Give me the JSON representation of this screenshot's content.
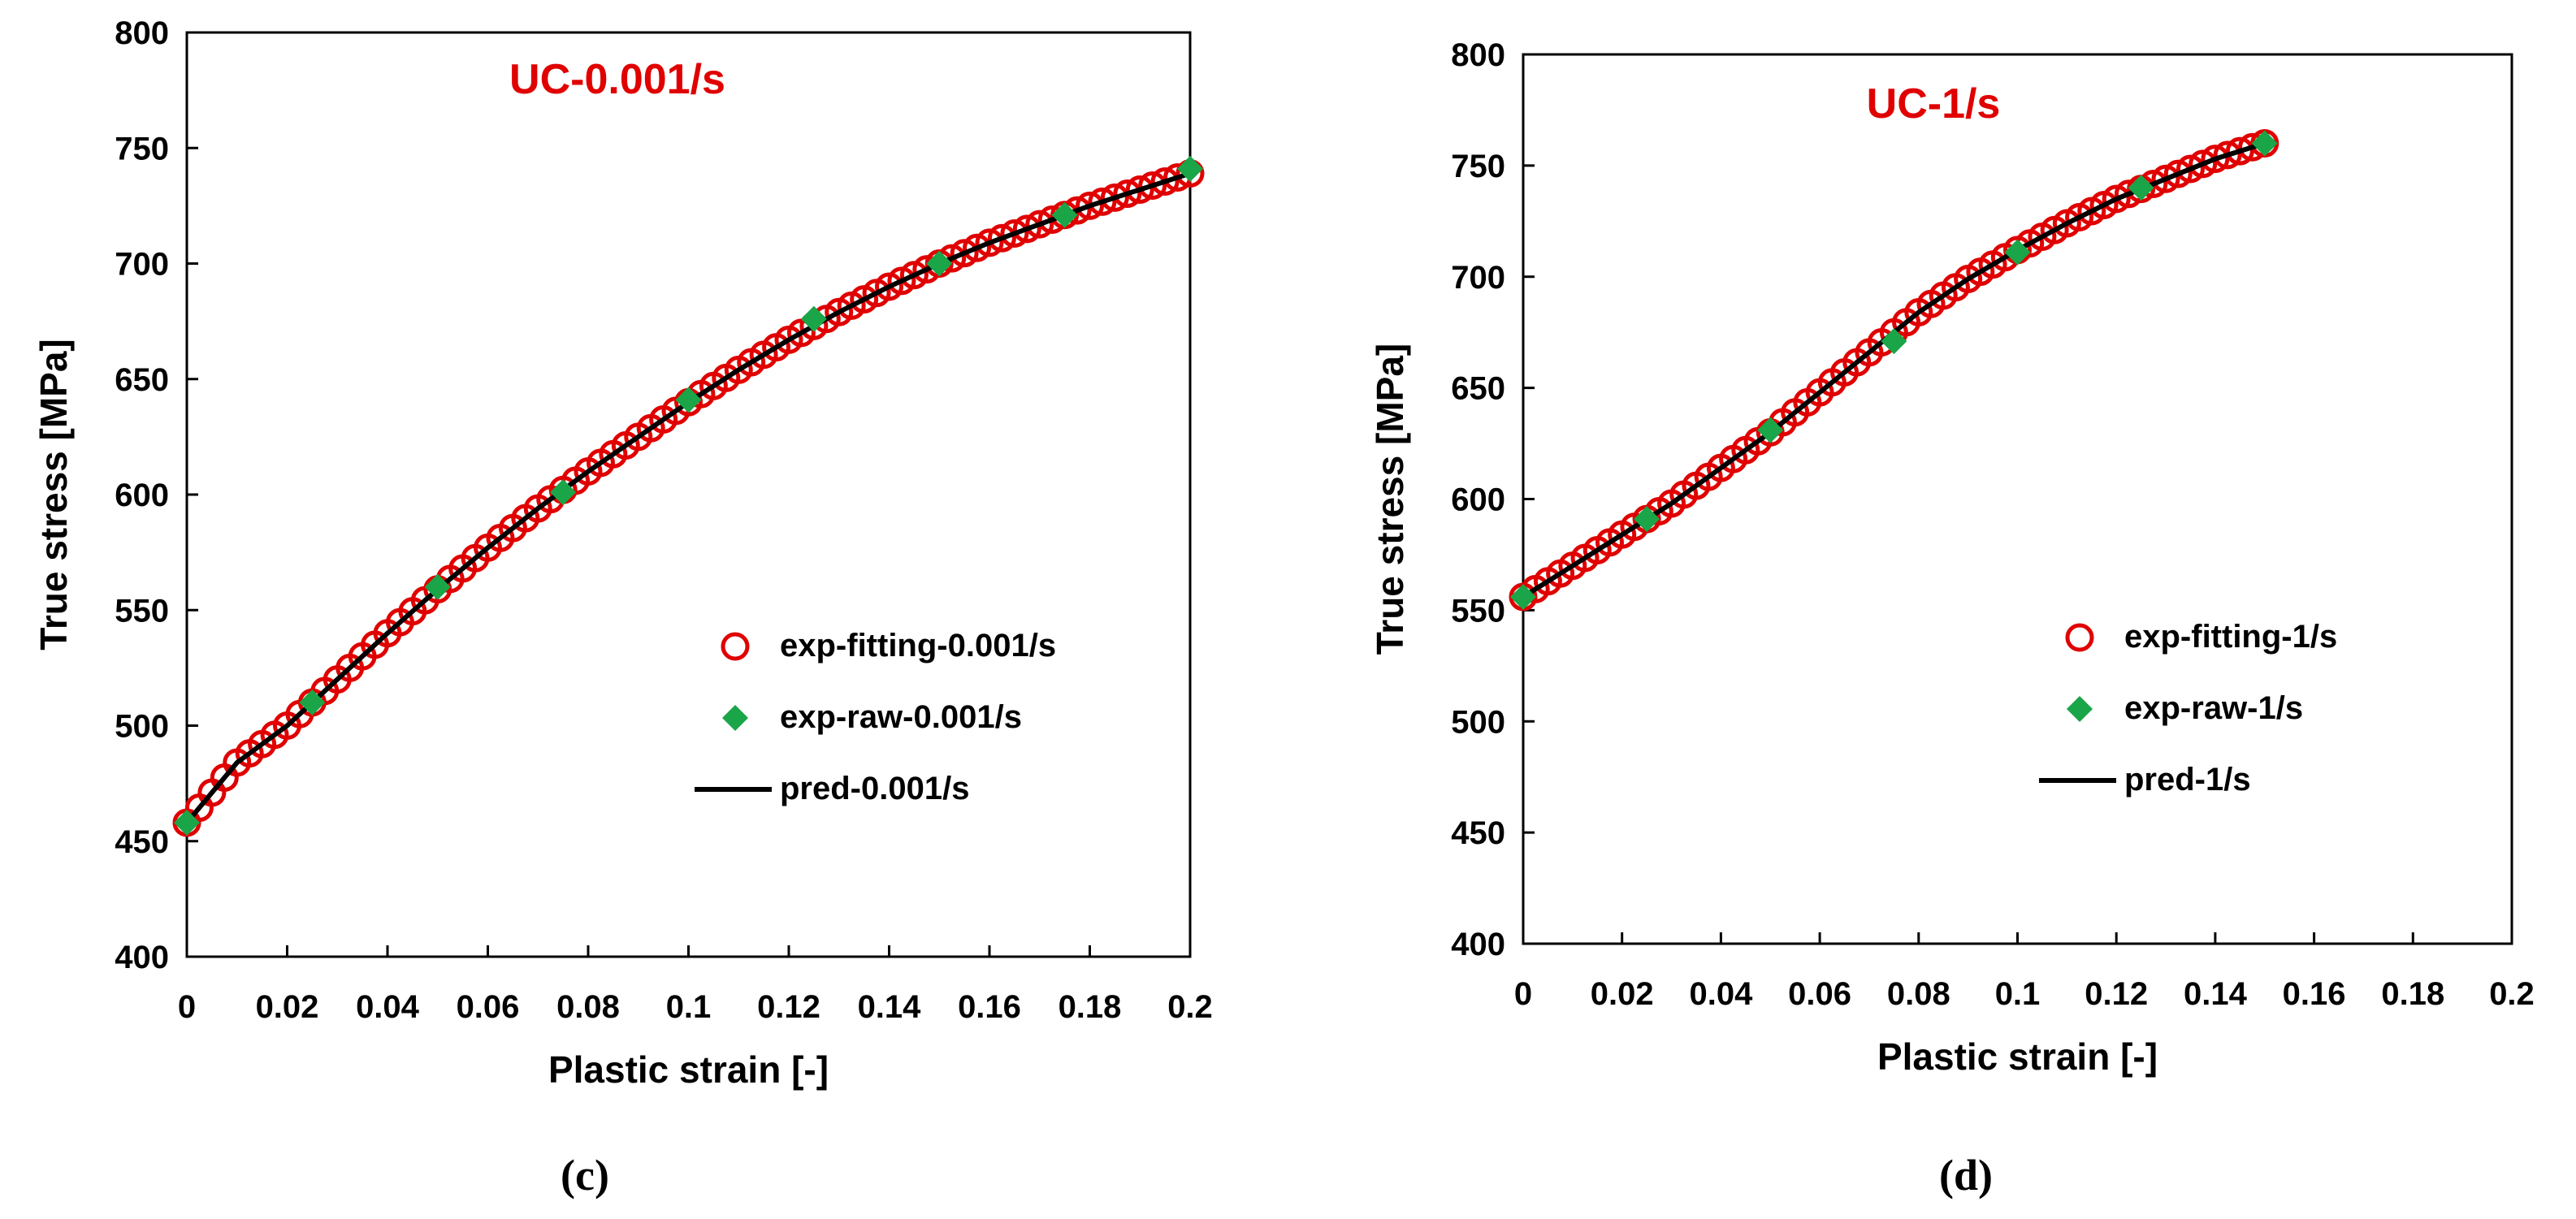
{
  "colors": {
    "fitting": "#e00000",
    "raw": "#1aa548",
    "pred": "#000000",
    "title": "#e00000"
  },
  "chart_data": [
    {
      "type": "line",
      "panel_label": "(c)",
      "title": "UC-0.001/s",
      "xlabel": "Plastic strain [-]",
      "ylabel": "True stress [MPa]",
      "xlim": [
        0,
        0.2
      ],
      "ylim": [
        400,
        800
      ],
      "xticks": [
        0,
        0.02,
        0.04,
        0.06,
        0.08,
        0.1,
        0.12,
        0.14,
        0.16,
        0.18,
        0.2
      ],
      "xtick_labels": [
        "0",
        "0.02",
        "0.04",
        "0.06",
        "0.08",
        "0.1",
        "0.12",
        "0.14",
        "0.16",
        "0.18",
        "0.2"
      ],
      "yticks": [
        400,
        450,
        500,
        550,
        600,
        650,
        700,
        750,
        800
      ],
      "ytick_labels": [
        "400",
        "450",
        "500",
        "550",
        "600",
        "650",
        "700",
        "750",
        "800"
      ],
      "legend_position": "center-right",
      "series": [
        {
          "name": "exp-fitting-0.001/s",
          "kind": "fitting",
          "x": [
            0,
            0.01,
            0.02,
            0.03,
            0.04,
            0.05,
            0.06,
            0.07,
            0.08,
            0.09,
            0.1,
            0.11,
            0.12,
            0.13,
            0.14,
            0.15,
            0.16,
            0.17,
            0.18,
            0.19,
            0.2
          ],
          "y": [
            458,
            484,
            500,
            520,
            540,
            559,
            577,
            594,
            610,
            625,
            640,
            654,
            667,
            679,
            690,
            700,
            709,
            717,
            725,
            732,
            739
          ]
        },
        {
          "name": "exp-raw-0.001/s",
          "kind": "raw",
          "x": [
            0,
            0.025,
            0.05,
            0.075,
            0.1,
            0.125,
            0.15,
            0.175,
            0.2
          ],
          "y": [
            458,
            510,
            560,
            601,
            641,
            676,
            700,
            721,
            741
          ]
        },
        {
          "name": "pred-0.001/s",
          "kind": "pred",
          "x": [
            0,
            0.01,
            0.02,
            0.03,
            0.04,
            0.05,
            0.06,
            0.07,
            0.08,
            0.09,
            0.1,
            0.11,
            0.12,
            0.13,
            0.14,
            0.15,
            0.16,
            0.17,
            0.18,
            0.19,
            0.2
          ],
          "y": [
            458,
            484,
            500,
            520,
            540,
            559,
            577,
            594,
            610,
            625,
            640,
            654,
            667,
            679,
            690,
            700,
            709,
            717,
            725,
            732,
            739
          ]
        }
      ]
    },
    {
      "type": "line",
      "panel_label": "(d)",
      "title": "UC-1/s",
      "xlabel": "Plastic strain [-]",
      "ylabel": "True stress [MPa]",
      "xlim": [
        0,
        0.2
      ],
      "ylim": [
        400,
        800
      ],
      "xticks": [
        0,
        0.02,
        0.04,
        0.06,
        0.08,
        0.1,
        0.12,
        0.14,
        0.16,
        0.18,
        0.2
      ],
      "xtick_labels": [
        "0",
        "0.02",
        "0.04",
        "0.06",
        "0.08",
        "0.1",
        "0.12",
        "0.14",
        "0.16",
        "0.18",
        "0.2"
      ],
      "yticks": [
        400,
        450,
        500,
        550,
        600,
        650,
        700,
        750,
        800
      ],
      "ytick_labels": [
        "400",
        "450",
        "500",
        "550",
        "600",
        "650",
        "700",
        "750",
        "800"
      ],
      "legend_position": "center-right",
      "series": [
        {
          "name": "exp-fitting-1/s",
          "kind": "fitting",
          "x": [
            0,
            0.01,
            0.02,
            0.03,
            0.04,
            0.05,
            0.06,
            0.07,
            0.08,
            0.09,
            0.1,
            0.11,
            0.12,
            0.13,
            0.14,
            0.15
          ],
          "y": [
            556,
            570,
            584,
            598,
            614,
            630,
            648,
            666,
            684,
            699,
            712,
            724,
            735,
            744,
            753,
            760
          ]
        },
        {
          "name": "exp-raw-1/s",
          "kind": "raw",
          "x": [
            0,
            0.025,
            0.05,
            0.075,
            0.1,
            0.125,
            0.15
          ],
          "y": [
            556,
            591,
            631,
            671,
            711,
            740,
            760
          ]
        },
        {
          "name": "pred-1/s",
          "kind": "pred",
          "x": [
            0,
            0.01,
            0.02,
            0.03,
            0.04,
            0.05,
            0.06,
            0.07,
            0.08,
            0.09,
            0.1,
            0.11,
            0.12,
            0.13,
            0.14,
            0.15
          ],
          "y": [
            556,
            570,
            584,
            598,
            614,
            630,
            648,
            666,
            684,
            699,
            712,
            724,
            735,
            744,
            753,
            760
          ]
        }
      ]
    }
  ]
}
